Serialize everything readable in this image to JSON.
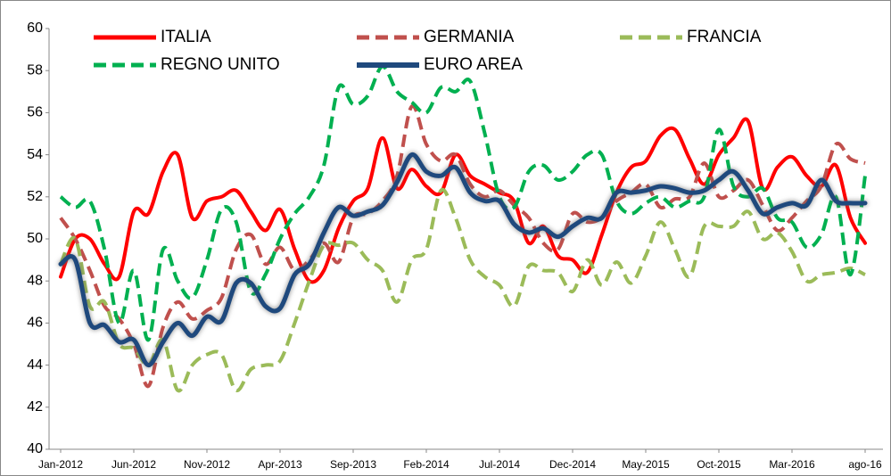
{
  "chart_data": {
    "type": "line",
    "categories": [
      "Jan-2012",
      null,
      null,
      null,
      null,
      "Jun-2012",
      null,
      null,
      null,
      null,
      "Nov-2012",
      null,
      null,
      null,
      null,
      "Apr-2013",
      null,
      null,
      null,
      null,
      "Sep-2013",
      null,
      null,
      null,
      null,
      "Feb-2014",
      null,
      null,
      null,
      null,
      "Jul-2014",
      null,
      null,
      null,
      null,
      "Dec-2014",
      null,
      null,
      null,
      null,
      "May-2015",
      null,
      null,
      null,
      null,
      "Oct-2015",
      null,
      null,
      null,
      null,
      "Mar-2016",
      null,
      null,
      null,
      null,
      "ago-16"
    ],
    "series": [
      {
        "name": "ITALIA",
        "color": "#ff0000",
        "style": "solid",
        "values": [
          48.2,
          50.0,
          50.0,
          48.8,
          48.2,
          51.3,
          51.2,
          53.2,
          54.0,
          51.0,
          51.8,
          52.0,
          52.3,
          51.3,
          50.4,
          51.4,
          49.5,
          48.0,
          48.5,
          50.5,
          51.8,
          52.4,
          54.8,
          52.4,
          53.3,
          52.5,
          52.2,
          54.0,
          53.0,
          52.6,
          52.2,
          51.8,
          49.8,
          50.6,
          49.2,
          49.0,
          48.4,
          50.2,
          52.2,
          53.4,
          53.7,
          54.9,
          55.2,
          53.8,
          52.6,
          54.0,
          54.8,
          55.6,
          52.4,
          53.4,
          53.9,
          53.0,
          52.5,
          53.5,
          51.0,
          49.8
        ]
      },
      {
        "name": "GERMANIA",
        "color": "#c0504d",
        "style": "dashed",
        "values": [
          51.0,
          50.0,
          48.5,
          46.8,
          46.2,
          45.0,
          43.0,
          45.8,
          47.0,
          46.2,
          46.6,
          47.2,
          49.5,
          50.2,
          48.8,
          49.6,
          48.5,
          49.0,
          49.8,
          48.9,
          51.0,
          51.2,
          51.8,
          53.0,
          56.3,
          54.5,
          53.7,
          54.0,
          52.6,
          52.0,
          52.3,
          51.6,
          51.0,
          49.8,
          49.5,
          51.2,
          50.8,
          51.0,
          51.8,
          52.2,
          52.6,
          51.5,
          51.9,
          52.0,
          53.6,
          52.0,
          52.3,
          52.8,
          51.6,
          50.4,
          51.0,
          51.8,
          52.5,
          54.5,
          53.8,
          53.6
        ]
      },
      {
        "name": "FRANCIA",
        "color": "#9bbb59",
        "style": "dashed",
        "values": [
          48.8,
          50.0,
          46.8,
          47.0,
          45.0,
          44.8,
          44.0,
          45.2,
          42.8,
          44.0,
          44.5,
          44.5,
          42.8,
          43.8,
          44.0,
          44.2,
          46.0,
          48.0,
          49.7,
          49.7,
          49.8,
          49.0,
          48.5,
          47.0,
          49.0,
          49.5,
          52.3,
          51.0,
          49.0,
          48.2,
          47.8,
          46.8,
          48.7,
          48.5,
          48.4,
          47.5,
          49.0,
          47.8,
          48.9,
          47.9,
          49.2,
          50.8,
          49.5,
          48.2,
          50.6,
          50.6,
          50.6,
          51.3,
          50.0,
          50.3,
          49.4,
          48.0,
          48.3,
          48.4,
          48.6,
          48.3
        ]
      },
      {
        "name": "REGNO UNITO",
        "color": "#00b050",
        "style": "dashed",
        "values": [
          52.0,
          51.5,
          51.8,
          49.5,
          46.0,
          48.5,
          45.2,
          49.5,
          48.0,
          47.2,
          49.0,
          51.4,
          50.8,
          47.5,
          48.3,
          50.0,
          51.2,
          52.0,
          53.5,
          57.2,
          56.4,
          56.8,
          58.2,
          57.0,
          56.5,
          56.0,
          57.2,
          57.0,
          57.5,
          55.0,
          52.0,
          51.5,
          53.2,
          53.5,
          52.8,
          53.2,
          54.0,
          54.0,
          51.8,
          51.2,
          51.7,
          52.0,
          51.5,
          51.8,
          52.0,
          55.2,
          52.5,
          52.0,
          52.4,
          51.0,
          50.8,
          49.6,
          50.2,
          52.0,
          48.3,
          53.0
        ]
      },
      {
        "name": "EURO AREA",
        "color": "#1f497d",
        "style": "solid",
        "values": [
          48.8,
          49.0,
          46.0,
          45.9,
          45.1,
          45.2,
          44.0,
          45.1,
          46.0,
          45.4,
          46.3,
          46.1,
          47.9,
          47.9,
          46.8,
          46.7,
          48.3,
          48.8,
          50.3,
          51.5,
          51.1,
          51.3,
          51.6,
          52.7,
          54.0,
          53.2,
          53.0,
          53.4,
          52.2,
          51.8,
          51.8,
          50.7,
          50.3,
          50.5,
          50.1,
          50.6,
          51.0,
          51.0,
          52.2,
          52.2,
          52.3,
          52.5,
          52.4,
          52.2,
          52.3,
          52.8,
          53.2,
          52.3,
          51.2,
          51.5,
          51.7,
          51.6,
          52.8,
          51.8,
          51.7,
          51.7
        ]
      }
    ],
    "ylim": [
      40,
      60
    ],
    "yticks": [
      40,
      42,
      44,
      46,
      48,
      50,
      52,
      54,
      56,
      58,
      60
    ]
  }
}
